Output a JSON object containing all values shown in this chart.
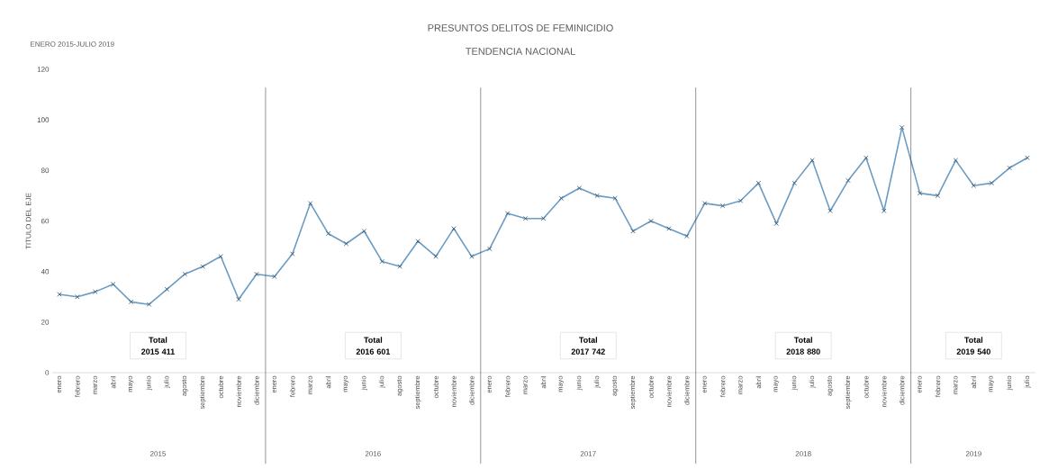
{
  "chart_data": {
    "type": "line",
    "title": "PRESUNTOS DELITOS DE FEMINICIDIO",
    "subtitle": "TENDENCIA NACIONAL",
    "ylabel": "TITULO DEL EJE",
    "categories": [
      "enero",
      "febrero",
      "marzo",
      "abril",
      "mayo",
      "junio",
      "julio",
      "agosto",
      "septiembre",
      "octubre",
      "noviembre",
      "diciembre",
      "enero",
      "febrero",
      "marzo",
      "abril",
      "mayo",
      "junio",
      "julio",
      "agosto",
      "septiembre",
      "octubre",
      "noviembre",
      "diciembre",
      "enero",
      "febrero",
      "marzo",
      "abril",
      "mayo",
      "junio",
      "julio",
      "agosto",
      "septiembre",
      "octubre",
      "noviembre",
      "diciembre",
      "enero",
      "febrero",
      "marzo",
      "abril",
      "mayo",
      "junio",
      "julio",
      "agosto",
      "septiembre",
      "octubre",
      "noviembre",
      "diciembre",
      "enero",
      "febrero",
      "marzo",
      "abril",
      "mayo",
      "junio",
      "julio"
    ],
    "series": [
      {
        "color": "#6a9cc4",
        "values": [
          31,
          30,
          32,
          35,
          28,
          27,
          33,
          39,
          42,
          46,
          29,
          39,
          38,
          47,
          67,
          55,
          51,
          56,
          44,
          42,
          52,
          46,
          57,
          46,
          49,
          63,
          61,
          61,
          69,
          73,
          70,
          69,
          56,
          60,
          57,
          54,
          67,
          66,
          68,
          75,
          59,
          75,
          84,
          64,
          76,
          85,
          64,
          97,
          71,
          70,
          84,
          74,
          75,
          81,
          85
        ]
      }
    ],
    "ylim": [
      0,
      120
    ],
    "yticks": [
      0,
      20,
      40,
      60,
      80,
      100,
      120
    ],
    "marker": "cross",
    "grid": false,
    "annotations": [
      "ENERO 2015-JULIO 2019",
      "2015",
      "2016",
      "2017",
      "2018",
      "2019",
      "Total 2015 411",
      "Total 2016 601",
      "Total 2017 742",
      "Total 2018 880",
      "Total 2019 540"
    ]
  }
}
